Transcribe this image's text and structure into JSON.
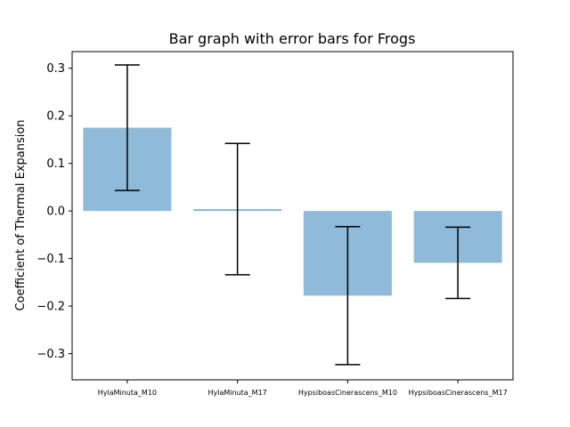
{
  "chart_data": {
    "type": "bar",
    "title": "Bar graph with error bars for Frogs",
    "xlabel": "",
    "ylabel": "Coefficient of Thermal Expansion",
    "categories": [
      "HylaMinuta_M10",
      "HylaMinuta_M17",
      "HypsiboasCinerascens_M10",
      "HypsiboasCinerascens_M17"
    ],
    "values": [
      0.175,
      0.004,
      -0.178,
      -0.109
    ],
    "errors": [
      0.132,
      0.138,
      0.145,
      0.075
    ],
    "ylim": [
      -0.355,
      0.335
    ],
    "yticks": [
      -0.3,
      -0.2,
      -0.1,
      0.0,
      0.1,
      0.2,
      0.3
    ],
    "ytick_labels": [
      "−0.3",
      "−0.2",
      "−0.1",
      "0.0",
      "0.1",
      "0.2",
      "0.3"
    ],
    "bar_color": "#8fbad9",
    "errorbar_color": "#000000",
    "grid": false
  }
}
